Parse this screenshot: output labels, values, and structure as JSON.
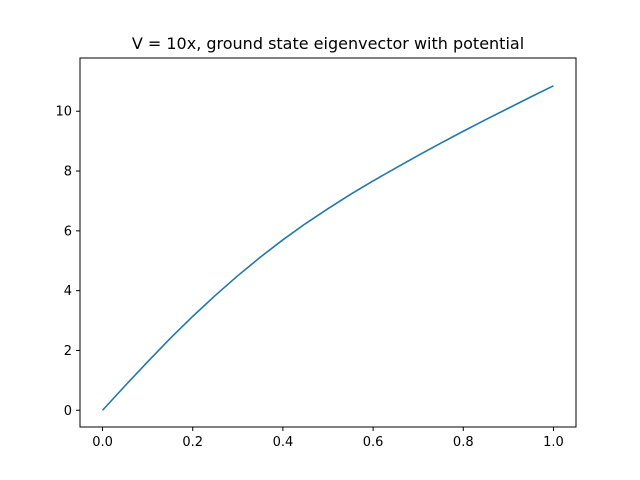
{
  "chart_data": {
    "type": "line",
    "title": "V = 10x, ground state eigenvector with potential",
    "xlabel": "",
    "ylabel": "",
    "xlim": [
      -0.05,
      1.05
    ],
    "ylim": [
      -0.56,
      11.78
    ],
    "x_ticks": [
      0.0,
      0.2,
      0.4,
      0.6,
      0.8,
      1.0
    ],
    "x_tick_labels": [
      "0.0",
      "0.2",
      "0.4",
      "0.6",
      "0.8",
      "1.0"
    ],
    "y_ticks": [
      0,
      2,
      4,
      6,
      8,
      10
    ],
    "y_tick_labels": [
      "0",
      "2",
      "4",
      "6",
      "8",
      "10"
    ],
    "grid": false,
    "series": [
      {
        "color": "#1f77b4",
        "x": [
          0.0,
          0.05,
          0.1,
          0.15,
          0.2,
          0.25,
          0.3,
          0.35,
          0.4,
          0.45,
          0.5,
          0.55,
          0.6,
          0.65,
          0.7,
          0.75,
          0.8,
          0.85,
          0.9,
          0.95,
          1.0
        ],
        "y": [
          0.0,
          0.82,
          1.62,
          2.4,
          3.14,
          3.84,
          4.5,
          5.12,
          5.7,
          6.24,
          6.74,
          7.22,
          7.67,
          8.1,
          8.52,
          8.93,
          9.33,
          9.72,
          10.1,
          10.48,
          10.85
        ]
      }
    ]
  }
}
